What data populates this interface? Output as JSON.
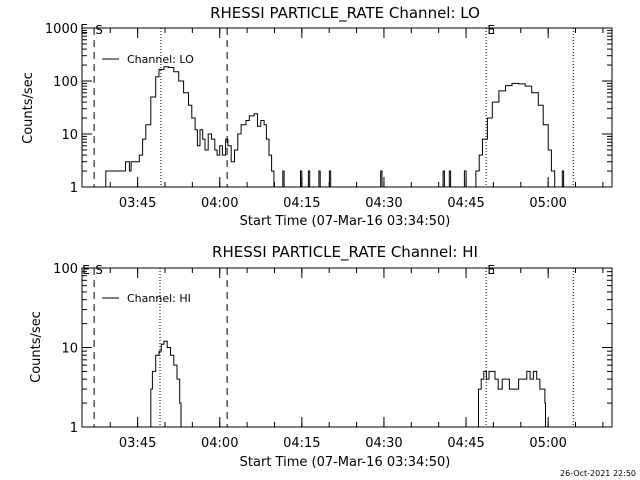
{
  "footer": {
    "timestamp": "26-Oct-2021 22:50"
  },
  "chart_data": [
    {
      "type": "line",
      "title": "RHESSI PARTICLE_RATE Channel: LO",
      "xlabel": "Start Time (07-Mar-16 03:34:50)",
      "ylabel": "Counts/sec",
      "yscale": "log",
      "ylim": [
        1,
        1000
      ],
      "xlim": [
        3.5806,
        5.1944
      ],
      "x_units": "hours (UT)",
      "yticks": [
        {
          "v": 1,
          "label": "1"
        },
        {
          "v": 10,
          "label": "10"
        },
        {
          "v": 100,
          "label": "100"
        },
        {
          "v": 1000,
          "label": "1000"
        }
      ],
      "xticks": [
        {
          "v": 3.75,
          "label": "03:45"
        },
        {
          "v": 4.0,
          "label": "04:00"
        },
        {
          "v": 4.25,
          "label": "04:15"
        },
        {
          "v": 4.5,
          "label": "04:30"
        },
        {
          "v": 4.75,
          "label": "04:45"
        },
        {
          "v": 5.0,
          "label": "05:00"
        }
      ],
      "legend": {
        "label": "Channel: LO",
        "placement": "top-left"
      },
      "markers": [
        {
          "x": 3.6175,
          "label": "S",
          "style": "dashed"
        },
        {
          "x": 4.0225,
          "label": "",
          "style": "dashed"
        },
        {
          "x": 3.8208,
          "label": "",
          "style": "dotted"
        },
        {
          "x": 4.8111,
          "label": "E",
          "style": "dotted"
        },
        {
          "x": 5.0764,
          "label": "",
          "style": "dotted"
        }
      ],
      "corner_label": "E",
      "series": [
        {
          "values": [
            [
              3.65,
              1
            ],
            [
              3.653,
              2
            ],
            [
              3.71,
              2
            ],
            [
              3.713,
              3
            ],
            [
              3.72,
              3
            ],
            [
              3.725,
              2
            ],
            [
              3.73,
              3
            ],
            [
              3.745,
              3
            ],
            [
              3.755,
              4
            ],
            [
              3.765,
              8
            ],
            [
              3.775,
              15
            ],
            [
              3.79,
              50
            ],
            [
              3.805,
              120
            ],
            [
              3.815,
              165
            ],
            [
              3.83,
              185
            ],
            [
              3.845,
              180
            ],
            [
              3.86,
              150
            ],
            [
              3.875,
              100
            ],
            [
              3.89,
              60
            ],
            [
              3.905,
              35
            ],
            [
              3.915,
              20
            ],
            [
              3.925,
              12
            ],
            [
              3.932,
              6
            ],
            [
              3.94,
              12
            ],
            [
              3.948,
              8
            ],
            [
              3.955,
              5
            ],
            [
              3.965,
              10
            ],
            [
              3.975,
              8
            ],
            [
              3.985,
              5
            ],
            [
              3.992,
              4
            ],
            [
              4.0,
              6
            ],
            [
              4.008,
              4
            ],
            [
              4.018,
              8
            ],
            [
              4.025,
              6
            ],
            [
              4.035,
              3
            ],
            [
              4.045,
              5
            ],
            [
              4.055,
              10
            ],
            [
              4.065,
              15
            ],
            [
              4.08,
              18
            ],
            [
              4.09,
              22
            ],
            [
              4.105,
              24
            ],
            [
              4.115,
              14
            ],
            [
              4.125,
              18
            ],
            [
              4.135,
              15
            ],
            [
              4.142,
              8
            ],
            [
              4.15,
              4
            ],
            [
              4.158,
              2
            ],
            [
              4.165,
              1
            ]
          ]
        },
        {
          "values": [
            [
              4.188,
              1
            ],
            [
              4.192,
              2
            ],
            [
              4.196,
              1
            ]
          ]
        },
        {
          "values": [
            [
              4.242,
              1
            ],
            [
              4.246,
              2
            ],
            [
              4.25,
              1
            ]
          ]
        },
        {
          "values": [
            [
              4.266,
              1
            ],
            [
              4.27,
              2
            ],
            [
              4.274,
              1
            ]
          ]
        },
        {
          "values": [
            [
              4.298,
              1
            ],
            [
              4.302,
              2
            ],
            [
              4.306,
              1
            ]
          ]
        },
        {
          "values": [
            [
              4.33,
              1
            ],
            [
              4.334,
              2
            ],
            [
              4.338,
              1
            ]
          ]
        },
        {
          "values": [
            [
              4.486,
              1
            ],
            [
              4.49,
              2
            ],
            [
              4.494,
              1
            ]
          ]
        },
        {
          "values": [
            [
              4.676,
              1
            ],
            [
              4.68,
              2
            ],
            [
              4.684,
              1
            ]
          ]
        },
        {
          "values": [
            [
              4.695,
              1
            ],
            [
              4.699,
              2
            ],
            [
              4.703,
              1
            ]
          ]
        },
        {
          "values": [
            [
              4.74,
              1
            ],
            [
              4.745,
              2
            ],
            [
              4.75,
              1
            ]
          ]
        },
        {
          "values": [
            [
              4.77,
              1
            ],
            [
              4.78,
              2
            ],
            [
              4.79,
              4
            ],
            [
              4.8,
              8
            ],
            [
              4.815,
              20
            ],
            [
              4.83,
              40
            ],
            [
              4.85,
              65
            ],
            [
              4.87,
              82
            ],
            [
              4.89,
              90
            ],
            [
              4.91,
              88
            ],
            [
              4.93,
              80
            ],
            [
              4.95,
              60
            ],
            [
              4.97,
              35
            ],
            [
              4.985,
              15
            ],
            [
              5.0,
              5
            ],
            [
              5.01,
              2
            ],
            [
              5.02,
              1
            ]
          ]
        },
        {
          "values": [
            [
              5.039,
              1
            ],
            [
              5.043,
              2
            ],
            [
              5.047,
              1
            ]
          ]
        }
      ]
    },
    {
      "type": "line",
      "title": "RHESSI PARTICLE_RATE Channel: HI",
      "xlabel": "Start Time (07-Mar-16 03:34:50)",
      "ylabel": "Counts/sec",
      "yscale": "log",
      "ylim": [
        1,
        100
      ],
      "xlim": [
        3.5806,
        5.1944
      ],
      "x_units": "hours (UT)",
      "yticks": [
        {
          "v": 1,
          "label": "1"
        },
        {
          "v": 10,
          "label": "10"
        },
        {
          "v": 100,
          "label": "100"
        }
      ],
      "xticks": [
        {
          "v": 3.75,
          "label": "03:45"
        },
        {
          "v": 4.0,
          "label": "04:00"
        },
        {
          "v": 4.25,
          "label": "04:15"
        },
        {
          "v": 4.5,
          "label": "04:30"
        },
        {
          "v": 4.75,
          "label": "04:45"
        },
        {
          "v": 5.0,
          "label": "05:00"
        }
      ],
      "legend": {
        "label": "Channel: HI",
        "placement": "top-left"
      },
      "markers": [
        {
          "x": 3.6175,
          "label": "S",
          "style": "dashed"
        },
        {
          "x": 4.0225,
          "label": "",
          "style": "dashed"
        },
        {
          "x": 3.8181,
          "label": "",
          "style": "dotted"
        },
        {
          "x": 4.8111,
          "label": "E",
          "style": "dotted"
        },
        {
          "x": 5.0764,
          "label": "",
          "style": "dotted"
        }
      ],
      "corner_label": "E",
      "series": [
        {
          "values": [
            [
              3.788,
              1
            ],
            [
              3.79,
              3
            ],
            [
              3.795,
              5
            ],
            [
              3.805,
              8
            ],
            [
              3.815,
              9
            ],
            [
              3.822,
              11
            ],
            [
              3.83,
              12
            ],
            [
              3.84,
              10
            ],
            [
              3.85,
              8
            ],
            [
              3.86,
              6
            ],
            [
              3.87,
              4
            ],
            [
              3.878,
              2
            ],
            [
              3.882,
              1
            ]
          ]
        },
        {
          "values": [
            [
              4.784,
              1
            ],
            [
              4.788,
              3
            ],
            [
              4.796,
              4
            ],
            [
              4.804,
              5
            ],
            [
              4.812,
              4
            ],
            [
              4.82,
              5
            ],
            [
              4.828,
              5
            ],
            [
              4.838,
              4
            ],
            [
              4.848,
              3
            ],
            [
              4.86,
              4
            ],
            [
              4.872,
              4
            ],
            [
              4.882,
              3
            ],
            [
              4.895,
              3
            ],
            [
              4.91,
              4
            ],
            [
              4.925,
              4
            ],
            [
              4.935,
              5
            ],
            [
              4.945,
              4
            ],
            [
              4.955,
              5
            ],
            [
              4.965,
              4
            ],
            [
              4.975,
              3
            ],
            [
              4.985,
              3
            ],
            [
              4.99,
              2
            ],
            [
              4.992,
              1
            ]
          ]
        }
      ]
    }
  ]
}
